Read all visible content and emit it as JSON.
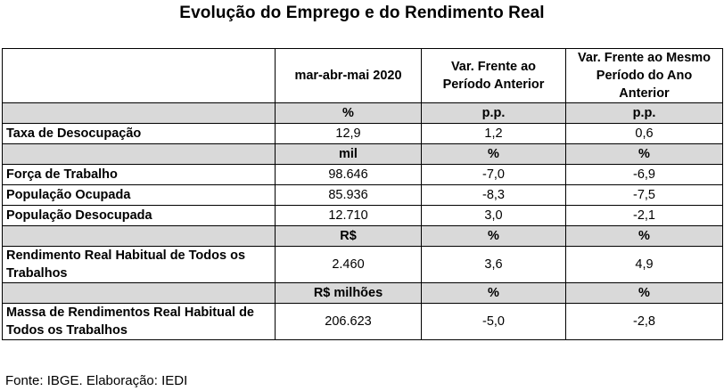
{
  "title": "Evolução do Emprego e do Rendimento Real",
  "headers": [
    "",
    "mar-abr-mai 2020",
    "Var. Frente ao Período Anterior",
    "Var. Frente ao Mesmo Período do Ano Anterior"
  ],
  "rows": [
    {
      "unit": [
        "%",
        "p.p.",
        "p.p."
      ]
    },
    {
      "label": "Taxa de Desocupação",
      "values": [
        "12,9",
        "1,2",
        "0,6"
      ]
    },
    {
      "unit": [
        "mil",
        "%",
        "%"
      ]
    },
    {
      "label": "Força de Trabalho",
      "values": [
        "98.646",
        "-7,0",
        "-6,9"
      ]
    },
    {
      "label": "População Ocupada",
      "values": [
        "85.936",
        "-8,3",
        "-7,5"
      ]
    },
    {
      "label": "População Desocupada",
      "values": [
        "12.710",
        "3,0",
        "-2,1"
      ]
    },
    {
      "unit": [
        "R$",
        "%",
        "%"
      ]
    },
    {
      "label": "Rendimento Real Habitual de Todos os Trabalhos",
      "values": [
        "2.460",
        "3,6",
        "4,9"
      ]
    },
    {
      "unit": [
        "R$ milhões",
        "%",
        "%"
      ]
    },
    {
      "label": "Massa de Rendimentos Real Habitual de Todos os Trabalhos",
      "values": [
        "206.623",
        "-5,0",
        "-2,8"
      ]
    }
  ],
  "source": "Fonte: IBGE. Elaboração: IEDI",
  "colors": {
    "unit_row_bg": "#d9d9d9",
    "border": "#000000"
  }
}
